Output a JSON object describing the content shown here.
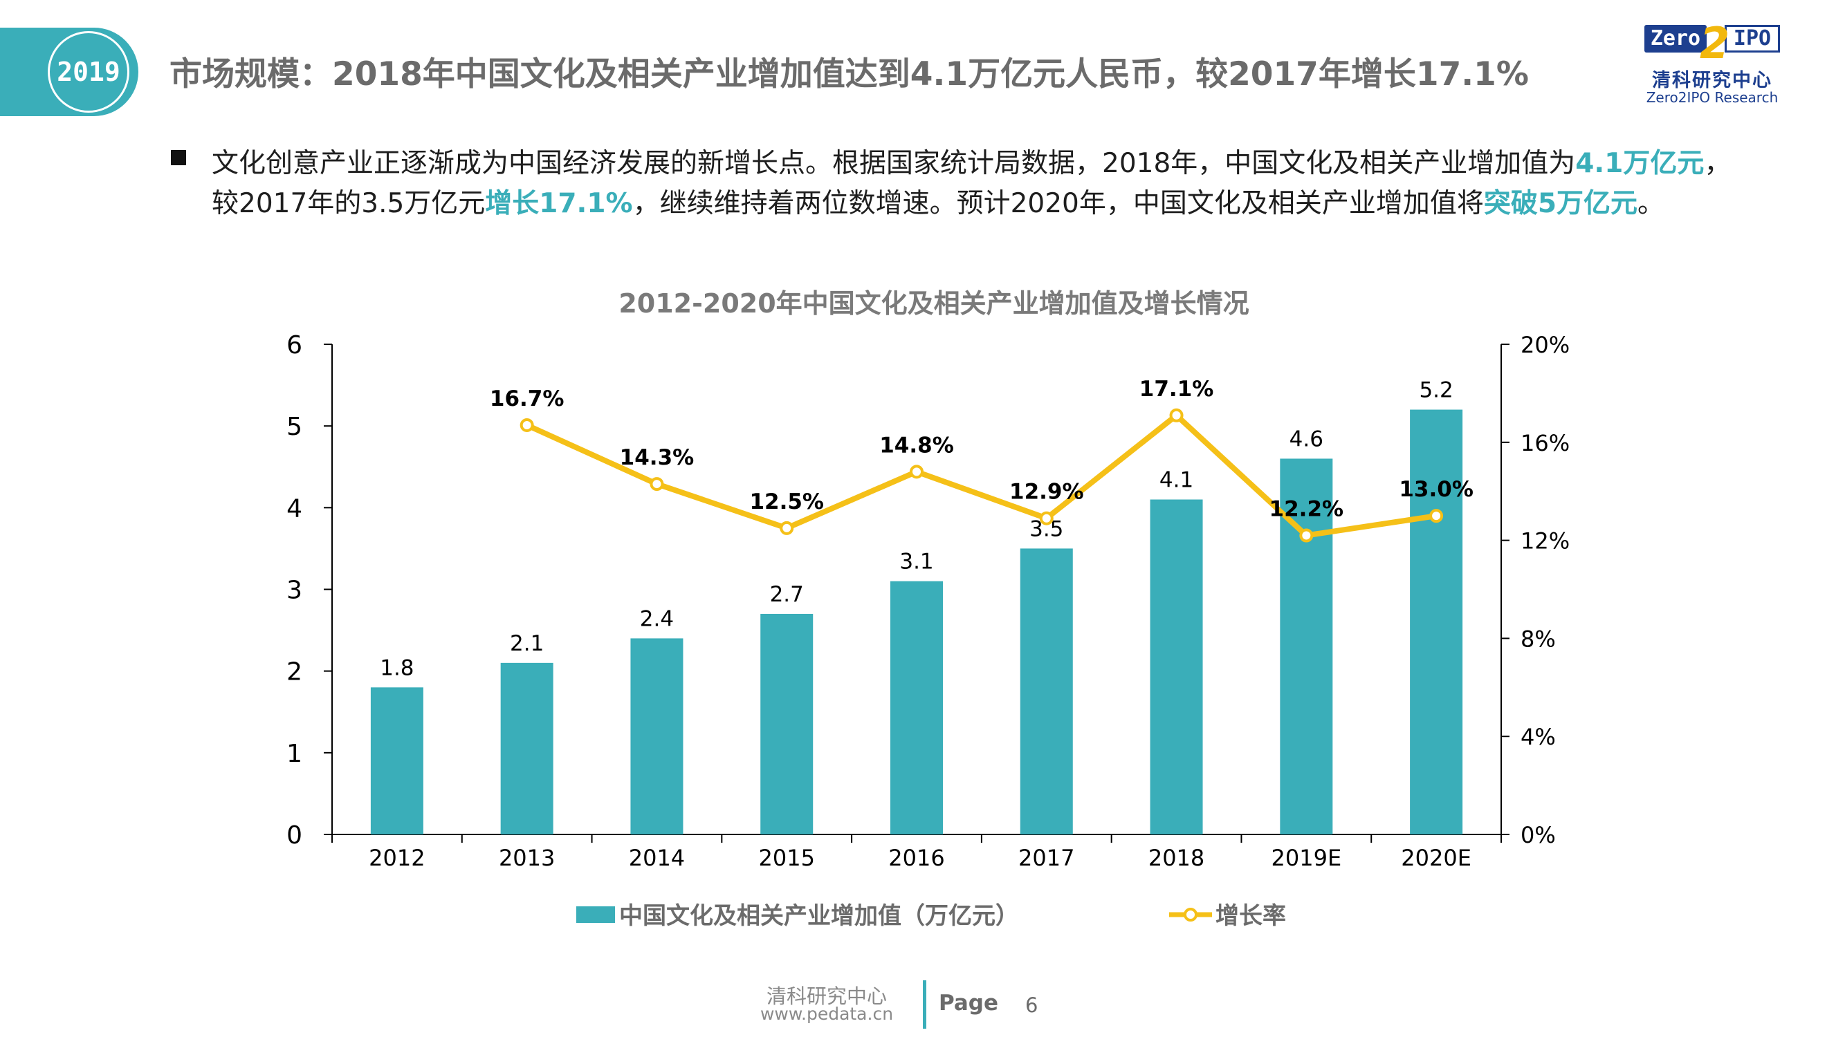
{
  "header": {
    "year_tab": "2019",
    "title": "市场规模：2018年中国文化及相关产业增加值达到4.1万亿元人民币，较2017年增长17.1%",
    "logo": {
      "word1": "Zero",
      "digit": "2",
      "word2": "IPO",
      "cn": "清科研究中心",
      "en": "Zero2IPO Research"
    }
  },
  "body": {
    "line1_a": "文化创意产业正逐渐成为中国经济发展的新增长点。根据国家统计局数据，2018年，中国文化及相关产业增加值为",
    "line1_hl": "4.1万亿元",
    "line1_b": "，",
    "line2_a": "较2017年的3.5万亿元",
    "line2_hl1": "增长17.1%",
    "line2_b": "，继续维持着两位数增速。预计2020年，中国文化及相关产业增加值将",
    "line2_hl2": "突破5万亿元",
    "line2_c": "。"
  },
  "colors": {
    "bar": "#3aaeb9",
    "line": "#f5c018",
    "accent": "#3aaeb9"
  },
  "chart_data": {
    "type": "bar",
    "title": "2012-2020年中国文化及相关产业增加值及增长情况",
    "categories": [
      "2012",
      "2013",
      "2014",
      "2015",
      "2016",
      "2017",
      "2018",
      "2019E",
      "2020E"
    ],
    "ylim": [
      0,
      6
    ],
    "yticks": [
      "0",
      "1",
      "2",
      "3",
      "4",
      "5",
      "6"
    ],
    "y2lim": [
      0,
      20
    ],
    "y2ticks": [
      "0%",
      "4%",
      "8%",
      "12%",
      "16%",
      "20%"
    ],
    "series": [
      {
        "name": "中国文化及相关产业增加值（万亿元）",
        "type": "bar",
        "axis": "left",
        "values": [
          1.8,
          2.1,
          2.4,
          2.7,
          3.1,
          3.5,
          4.1,
          4.6,
          5.2
        ],
        "labels": [
          "1.8",
          "2.1",
          "2.4",
          "2.7",
          "3.1",
          "3.5",
          "4.1",
          "4.6",
          "5.2"
        ]
      },
      {
        "name": "增长率",
        "type": "line",
        "axis": "right",
        "values": [
          null,
          16.7,
          14.3,
          12.5,
          14.8,
          12.9,
          17.1,
          12.2,
          13.0
        ],
        "labels": [
          "",
          "16.7%",
          "14.3%",
          "12.5%",
          "14.8%",
          "12.9%",
          "17.1%",
          "12.2%",
          "13.0%"
        ]
      }
    ],
    "legend_position": "bottom"
  },
  "footer": {
    "org": "清科研究中心",
    "url": "www.pedata.cn",
    "page_label": "Page",
    "page_number": "6"
  }
}
